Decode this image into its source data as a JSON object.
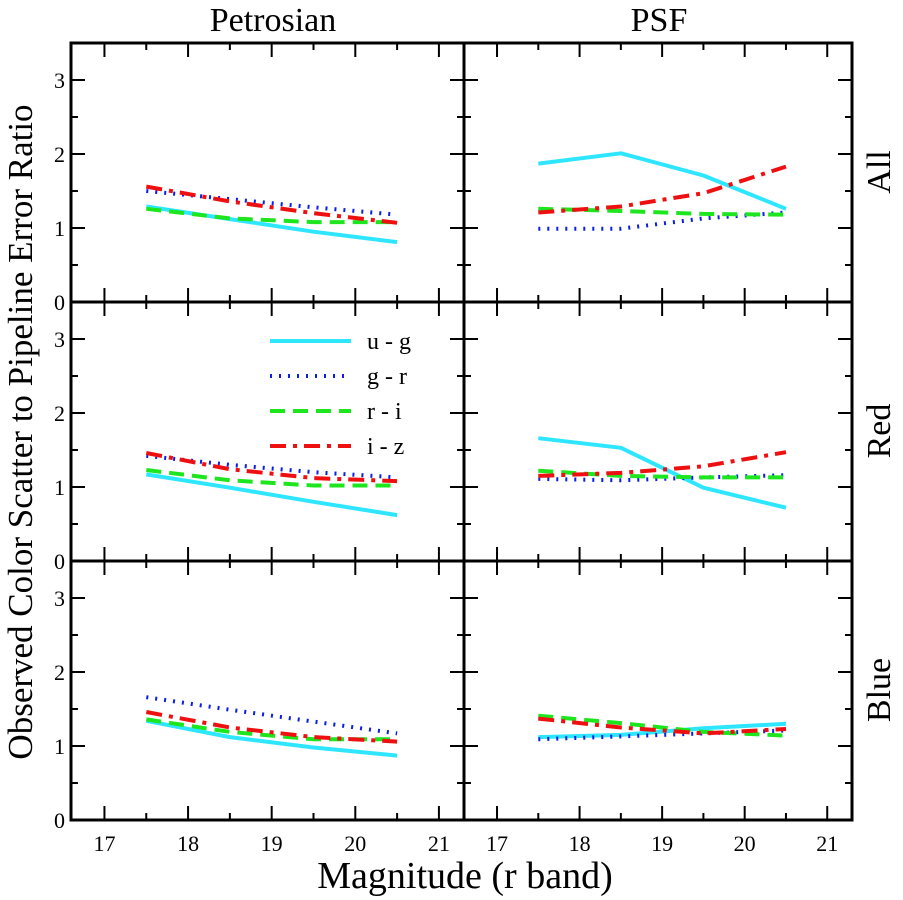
{
  "figure": {
    "ylabel": "Observed Color Scatter to Pipeline Error Ratio",
    "xlabel": "Magnitude (r band)",
    "columns": [
      "Petrosian",
      "PSF"
    ],
    "rows": [
      "All",
      "Red",
      "Blue"
    ],
    "x_ticks": [
      "17",
      "18",
      "19",
      "20",
      "21"
    ],
    "y_ticks": [
      "0",
      "1",
      "2",
      "3"
    ]
  },
  "legend": {
    "placement": "Petrosian / Red panel, upper right",
    "entries": [
      "u - g",
      "g - r",
      "r - i",
      "i - z"
    ]
  },
  "series_styles": [
    {
      "name": "u - g",
      "color": "#2ee6ff",
      "dash": "solid"
    },
    {
      "name": "g - r",
      "color": "#0a1fe6",
      "dash": "dotted"
    },
    {
      "name": "r - i",
      "color": "#1ee61e",
      "dash": "dashed"
    },
    {
      "name": "i - z",
      "color": "#ee1010",
      "dash": "dashdot"
    }
  ],
  "chart_data": [
    {
      "type": "line",
      "title": "Petrosian",
      "row": "All",
      "xlabel": "Magnitude (r band)",
      "ylabel": "Observed Color Scatter to Pipeline Error Ratio",
      "xlim": [
        16.6,
        21.3
      ],
      "ylim": [
        0,
        3.5
      ],
      "x": [
        17.5,
        18.5,
        19.5,
        20.5
      ],
      "series": [
        {
          "name": "u - g",
          "values": [
            1.29,
            1.12,
            0.95,
            0.81
          ]
        },
        {
          "name": "g - r",
          "values": [
            1.5,
            1.39,
            1.28,
            1.18
          ]
        },
        {
          "name": "r - i",
          "values": [
            1.26,
            1.13,
            1.08,
            1.08
          ]
        },
        {
          "name": "i - z",
          "values": [
            1.56,
            1.36,
            1.2,
            1.07
          ]
        }
      ]
    },
    {
      "type": "line",
      "title": "PSF",
      "row": "All",
      "xlabel": "Magnitude (r band)",
      "ylabel": "Observed Color Scatter to Pipeline Error Ratio",
      "xlim": [
        16.6,
        21.3
      ],
      "ylim": [
        0,
        3.5
      ],
      "x": [
        17.5,
        18.5,
        19.5,
        20.5
      ],
      "series": [
        {
          "name": "u - g",
          "values": [
            1.87,
            2.01,
            1.71,
            1.26
          ]
        },
        {
          "name": "g - r",
          "values": [
            0.99,
            0.99,
            1.13,
            1.21
          ]
        },
        {
          "name": "r - i",
          "values": [
            1.26,
            1.23,
            1.19,
            1.18
          ]
        },
        {
          "name": "i - z",
          "values": [
            1.21,
            1.29,
            1.47,
            1.83
          ]
        }
      ]
    },
    {
      "type": "line",
      "title": "Petrosian",
      "row": "Red",
      "xlabel": "Magnitude (r band)",
      "ylabel": "Observed Color Scatter to Pipeline Error Ratio",
      "xlim": [
        16.6,
        21.3
      ],
      "ylim": [
        0,
        3.5
      ],
      "x": [
        17.5,
        18.5,
        19.5,
        20.5
      ],
      "series": [
        {
          "name": "u - g",
          "values": [
            1.17,
            0.99,
            0.8,
            0.62
          ]
        },
        {
          "name": "g - r",
          "values": [
            1.42,
            1.3,
            1.2,
            1.13
          ]
        },
        {
          "name": "r - i",
          "values": [
            1.23,
            1.09,
            1.02,
            1.02
          ]
        },
        {
          "name": "i - z",
          "values": [
            1.46,
            1.24,
            1.12,
            1.08
          ]
        }
      ]
    },
    {
      "type": "line",
      "title": "PSF",
      "row": "Red",
      "xlabel": "Magnitude (r band)",
      "ylabel": "Observed Color Scatter to Pipeline Error Ratio",
      "xlim": [
        16.6,
        21.3
      ],
      "ylim": [
        0,
        3.5
      ],
      "x": [
        17.5,
        18.5,
        19.5,
        20.5
      ],
      "series": [
        {
          "name": "u - g",
          "values": [
            1.66,
            1.53,
            0.99,
            0.72
          ]
        },
        {
          "name": "g - r",
          "values": [
            1.11,
            1.09,
            1.13,
            1.16
          ]
        },
        {
          "name": "r - i",
          "values": [
            1.22,
            1.15,
            1.13,
            1.13
          ]
        },
        {
          "name": "i - z",
          "values": [
            1.15,
            1.19,
            1.28,
            1.47
          ]
        }
      ]
    },
    {
      "type": "line",
      "title": "Petrosian",
      "row": "Blue",
      "xlabel": "Magnitude (r band)",
      "ylabel": "Observed Color Scatter to Pipeline Error Ratio",
      "xlim": [
        16.6,
        21.3
      ],
      "ylim": [
        0,
        3.5
      ],
      "x": [
        17.5,
        18.5,
        19.5,
        20.5
      ],
      "series": [
        {
          "name": "u - g",
          "values": [
            1.34,
            1.12,
            0.98,
            0.87
          ]
        },
        {
          "name": "g - r",
          "values": [
            1.66,
            1.49,
            1.33,
            1.17
          ]
        },
        {
          "name": "r - i",
          "values": [
            1.36,
            1.19,
            1.09,
            1.09
          ]
        },
        {
          "name": "i - z",
          "values": [
            1.46,
            1.25,
            1.12,
            1.06
          ]
        }
      ]
    },
    {
      "type": "line",
      "title": "PSF",
      "row": "Blue",
      "xlabel": "Magnitude (r band)",
      "ylabel": "Observed Color Scatter to Pipeline Error Ratio",
      "xlim": [
        16.6,
        21.3
      ],
      "ylim": [
        0,
        3.5
      ],
      "x": [
        17.5,
        18.5,
        19.5,
        20.5
      ],
      "series": [
        {
          "name": "u - g",
          "values": [
            1.12,
            1.15,
            1.24,
            1.3
          ]
        },
        {
          "name": "g - r",
          "values": [
            1.09,
            1.13,
            1.17,
            1.21
          ]
        },
        {
          "name": "r - i",
          "values": [
            1.41,
            1.31,
            1.19,
            1.14
          ]
        },
        {
          "name": "i - z",
          "values": [
            1.37,
            1.25,
            1.17,
            1.23
          ]
        }
      ]
    }
  ]
}
